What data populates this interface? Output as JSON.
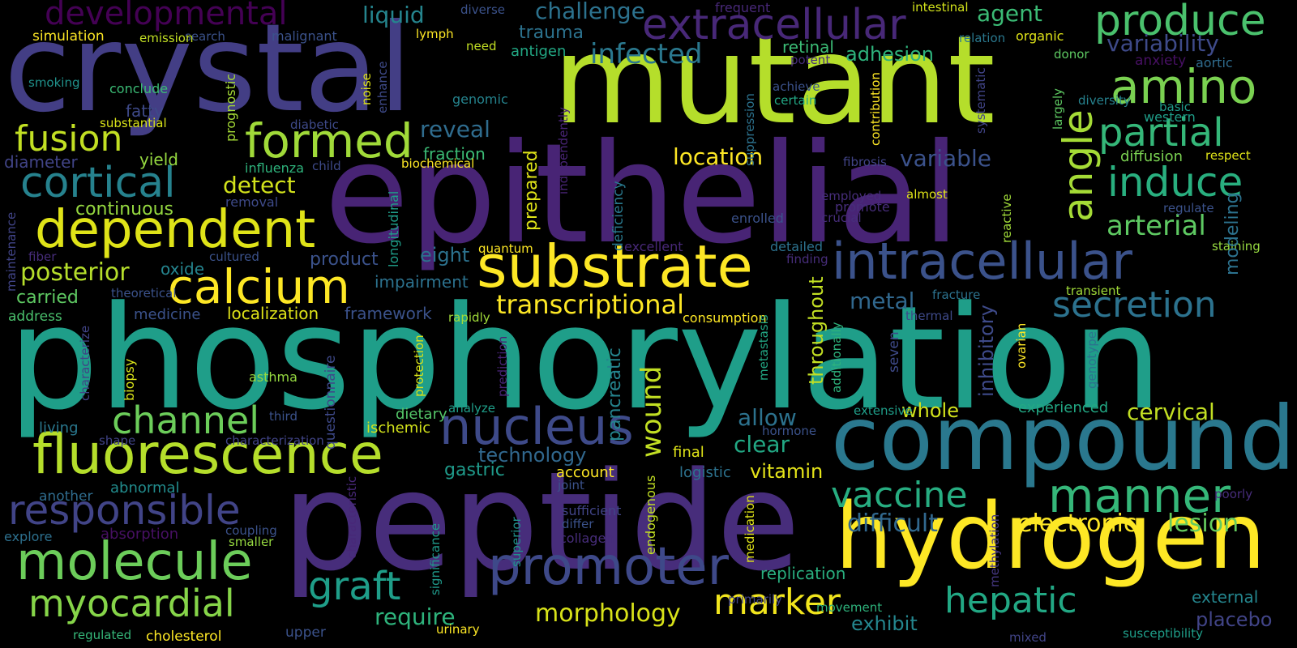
{
  "words": [
    {
      "text": "phosphorylation",
      "color": "#1f9e89"
    },
    {
      "text": "epithelial",
      "color": "#482475"
    },
    {
      "text": "mutant",
      "color": "#b5de2b"
    },
    {
      "text": "crystal",
      "color": "#433e85"
    },
    {
      "text": "peptide",
      "color": "#472d7b"
    },
    {
      "text": "compound",
      "color": "#2a788e"
    },
    {
      "text": "hydrogen",
      "color": "#fde725"
    },
    {
      "text": "substrate",
      "color": "#fde725"
    },
    {
      "text": "intracellular",
      "color": "#3b528b"
    },
    {
      "text": "extracellular",
      "color": "#482878"
    },
    {
      "text": "fluorescence",
      "color": "#b5de2b"
    },
    {
      "text": "dependent",
      "color": "#dfe318"
    },
    {
      "text": "nucleus",
      "color": "#3e4a89"
    },
    {
      "text": "promoter",
      "color": "#3e4989"
    },
    {
      "text": "molecule",
      "color": "#6ccd5a"
    },
    {
      "text": "responsible",
      "color": "#414487"
    },
    {
      "text": "calcium",
      "color": "#fde725"
    },
    {
      "text": "manner",
      "color": "#35b779"
    },
    {
      "text": "produce",
      "color": "#4ac16d"
    },
    {
      "text": "amino",
      "color": "#7ad151"
    },
    {
      "text": "developmental",
      "color": "#440154"
    },
    {
      "text": "formed",
      "color": "#a0da39"
    },
    {
      "text": "cortical",
      "color": "#26828e"
    },
    {
      "text": "myocardial",
      "color": "#86d549"
    },
    {
      "text": "channel",
      "color": "#6ccd5a"
    },
    {
      "text": "fusion",
      "color": "#c2df23"
    },
    {
      "text": "secretion",
      "color": "#2c728e"
    },
    {
      "text": "partial",
      "color": "#35b779"
    },
    {
      "text": "induce",
      "color": "#29af7f"
    },
    {
      "text": "angle",
      "color": "#a5db36"
    },
    {
      "text": "hepatic",
      "color": "#22a884"
    },
    {
      "text": "vaccine",
      "color": "#27ad81"
    },
    {
      "text": "graft",
      "color": "#1f9e89"
    },
    {
      "text": "marker",
      "color": "#f1e51d"
    },
    {
      "text": "wound",
      "color": "#c2df23"
    },
    {
      "text": "transcriptional",
      "color": "#fde725"
    },
    {
      "text": "arterial",
      "color": "#5ec962"
    },
    {
      "text": "morphology",
      "color": "#d8e219"
    },
    {
      "text": "electronic",
      "color": "#fde725"
    },
    {
      "text": "lesion",
      "color": "#65cb5e"
    },
    {
      "text": "posterior",
      "color": "#b5de2b"
    },
    {
      "text": "require",
      "color": "#2eb37c"
    },
    {
      "text": "difficult",
      "color": "#31688e"
    },
    {
      "text": "variability",
      "color": "#3e4a89"
    },
    {
      "text": "infected",
      "color": "#2a788e"
    },
    {
      "text": "challenge",
      "color": "#2c728e"
    },
    {
      "text": "liquid",
      "color": "#25858e"
    },
    {
      "text": "agent",
      "color": "#3bbb75"
    },
    {
      "text": "reveal",
      "color": "#2f6c8e"
    },
    {
      "text": "location",
      "color": "#fde725"
    },
    {
      "text": "variable",
      "color": "#3b528b"
    },
    {
      "text": "metal",
      "color": "#31688e"
    },
    {
      "text": "adhesion",
      "color": "#2eb37c"
    },
    {
      "text": "detect",
      "color": "#d2e21b"
    },
    {
      "text": "modeling",
      "color": "#2c728e"
    },
    {
      "text": "allow",
      "color": "#2c728e"
    },
    {
      "text": "clear",
      "color": "#22a884"
    },
    {
      "text": "vitamin",
      "color": "#e5e419"
    },
    {
      "text": "whole",
      "color": "#d2e21b"
    },
    {
      "text": "cervical",
      "color": "#c2df23"
    },
    {
      "text": "technology",
      "color": "#31688e"
    },
    {
      "text": "product",
      "color": "#3b528b"
    },
    {
      "text": "eight",
      "color": "#2c728e"
    },
    {
      "text": "continuous",
      "color": "#95d840"
    },
    {
      "text": "gastric",
      "color": "#1f9a8a"
    },
    {
      "text": "inhibitory",
      "color": "#3e4a89"
    },
    {
      "text": "throughout",
      "color": "#c2df23"
    },
    {
      "text": "prepared",
      "color": "#dfe318"
    },
    {
      "text": "pancreatic",
      "color": "#25848e"
    },
    {
      "text": "trauma",
      "color": "#2c728e"
    },
    {
      "text": "exhibit",
      "color": "#24868e"
    },
    {
      "text": "external",
      "color": "#24868e"
    },
    {
      "text": "placebo",
      "color": "#414487"
    },
    {
      "text": "replication",
      "color": "#29af7f"
    },
    {
      "text": "fraction",
      "color": "#3bbb75"
    },
    {
      "text": "carried",
      "color": "#5ec962"
    },
    {
      "text": "localization",
      "color": "#dfe318"
    },
    {
      "text": "framework",
      "color": "#3b528b"
    },
    {
      "text": "impairment",
      "color": "#2c728e"
    },
    {
      "text": "oxide",
      "color": "#25848e"
    },
    {
      "text": "retinal",
      "color": "#3bbb75"
    },
    {
      "text": "antigen",
      "color": "#22a884"
    },
    {
      "text": "experienced",
      "color": "#22a884"
    },
    {
      "text": "account",
      "color": "#fde725"
    },
    {
      "text": "final",
      "color": "#dfe318"
    },
    {
      "text": "dietary",
      "color": "#54c568"
    },
    {
      "text": "abnormal",
      "color": "#228c8d"
    },
    {
      "text": "fatty",
      "color": "#3e4a89"
    },
    {
      "text": "diameter",
      "color": "#414487"
    },
    {
      "text": "yield",
      "color": "#95d840"
    },
    {
      "text": "simulation",
      "color": "#fde725"
    },
    {
      "text": "cholesterol",
      "color": "#fde725"
    },
    {
      "text": "another",
      "color": "#2f6c8e"
    },
    {
      "text": "living",
      "color": "#2a788e"
    },
    {
      "text": "address",
      "color": "#4ac16d"
    },
    {
      "text": "medicine",
      "color": "#3b528b"
    },
    {
      "text": "absorption",
      "color": "#471063"
    },
    {
      "text": "explore",
      "color": "#2d708e"
    },
    {
      "text": "deficiency",
      "color": "#29798e"
    },
    {
      "text": "longitudinal",
      "color": "#1f9e89"
    },
    {
      "text": "independently",
      "color": "#482475"
    },
    {
      "text": "enhance",
      "color": "#3e4a89"
    },
    {
      "text": "prognostic",
      "color": "#a5db36"
    },
    {
      "text": "noise",
      "color": "#dfe318"
    },
    {
      "text": "questionnaire",
      "color": "#3e4989"
    },
    {
      "text": "significance",
      "color": "#1f9a8a"
    },
    {
      "text": "superior",
      "color": "#20928c"
    },
    {
      "text": "endogenous",
      "color": "#c2df23"
    },
    {
      "text": "medication",
      "color": "#dfe318"
    },
    {
      "text": "additionally",
      "color": "#2eb37c"
    },
    {
      "text": "metastasis",
      "color": "#22a884"
    },
    {
      "text": "seven",
      "color": "#3e4a89"
    },
    {
      "text": "methylation",
      "color": "#453781"
    },
    {
      "text": "ovarian",
      "color": "#fde725"
    },
    {
      "text": "genotype",
      "color": "#2c728e"
    },
    {
      "text": "reactive",
      "color": "#a0da39"
    },
    {
      "text": "contribution",
      "color": "#fde725"
    },
    {
      "text": "systematic",
      "color": "#414487"
    },
    {
      "text": "suppression",
      "color": "#2c728e"
    },
    {
      "text": "largely",
      "color": "#5ec962"
    },
    {
      "text": "maintenance",
      "color": "#414487"
    },
    {
      "text": "characterize",
      "color": "#414487"
    },
    {
      "text": "biopsy",
      "color": "#d8e219"
    },
    {
      "text": "protection",
      "color": "#d8e219"
    },
    {
      "text": "prediction",
      "color": "#482475"
    },
    {
      "text": "characteristic",
      "color": "#482878"
    },
    {
      "text": "frequent",
      "color": "#482878"
    },
    {
      "text": "intestinal",
      "color": "#d2e21b"
    },
    {
      "text": "relation",
      "color": "#2a788e"
    },
    {
      "text": "organic",
      "color": "#dfe318"
    },
    {
      "text": "donor",
      "color": "#5ec962"
    },
    {
      "text": "anxiety",
      "color": "#471063"
    },
    {
      "text": "aortic",
      "color": "#2f6c8e"
    },
    {
      "text": "diversity",
      "color": "#26828e"
    },
    {
      "text": "basic",
      "color": "#1f9a8a"
    },
    {
      "text": "western",
      "color": "#1f9e89"
    },
    {
      "text": "diffusion",
      "color": "#7ad151"
    },
    {
      "text": "respect",
      "color": "#dfe318"
    },
    {
      "text": "regulate",
      "color": "#3b528b"
    },
    {
      "text": "staining",
      "color": "#95d840"
    },
    {
      "text": "transient",
      "color": "#a0da39"
    },
    {
      "text": "thermal",
      "color": "#3e4a89"
    },
    {
      "text": "fracture",
      "color": "#2c728e"
    },
    {
      "text": "finding",
      "color": "#472d7b"
    },
    {
      "text": "detailed",
      "color": "#2c728e"
    },
    {
      "text": "excellent",
      "color": "#482878"
    },
    {
      "text": "consumption",
      "color": "#fde725"
    },
    {
      "text": "enrolled",
      "color": "#3b528b"
    },
    {
      "text": "crucial",
      "color": "#472d7b"
    },
    {
      "text": "employed",
      "color": "#472d7b"
    },
    {
      "text": "promote",
      "color": "#472d7b"
    },
    {
      "text": "almost",
      "color": "#dfe318"
    },
    {
      "text": "achieve",
      "color": "#3b528b"
    },
    {
      "text": "certain",
      "color": "#22a884"
    },
    {
      "text": "potent",
      "color": "#472d7b"
    },
    {
      "text": "fibrosis",
      "color": "#414487"
    },
    {
      "text": "child",
      "color": "#3e4a89"
    },
    {
      "text": "biochemical",
      "color": "#fde725"
    },
    {
      "text": "influenza",
      "color": "#2eb37c"
    },
    {
      "text": "removal",
      "color": "#3e4a89"
    },
    {
      "text": "diabetic",
      "color": "#3e4a89"
    },
    {
      "text": "substantial",
      "color": "#d8e219"
    },
    {
      "text": "conclude",
      "color": "#3bbb75"
    },
    {
      "text": "smoking",
      "color": "#20928c"
    },
    {
      "text": "genomic",
      "color": "#25848e"
    },
    {
      "text": "need",
      "color": "#c2df23"
    },
    {
      "text": "lymph",
      "color": "#fde725"
    },
    {
      "text": "diverse",
      "color": "#3b528b"
    },
    {
      "text": "search",
      "color": "#3b528b"
    },
    {
      "text": "malignant",
      "color": "#3b528b"
    },
    {
      "text": "emission",
      "color": "#c2df23"
    },
    {
      "text": "fiber",
      "color": "#472d7b"
    },
    {
      "text": "cultured",
      "color": "#3b528b"
    },
    {
      "text": "theoretical",
      "color": "#3b528b"
    },
    {
      "text": "quantum",
      "color": "#fde725"
    },
    {
      "text": "rapidly",
      "color": "#a0da39"
    },
    {
      "text": "asthma",
      "color": "#95d840"
    },
    {
      "text": "third",
      "color": "#3b528b"
    },
    {
      "text": "analyze",
      "color": "#1f9e89"
    },
    {
      "text": "ischemic",
      "color": "#d2e21b"
    },
    {
      "text": "shape",
      "color": "#414487"
    },
    {
      "text": "characterization",
      "color": "#414487"
    },
    {
      "text": "hormone",
      "color": "#3b528b"
    },
    {
      "text": "extensive",
      "color": "#1f9e89"
    },
    {
      "text": "logistic",
      "color": "#2c728e"
    },
    {
      "text": "joint",
      "color": "#3b528b"
    },
    {
      "text": "sufficient",
      "color": "#414487"
    },
    {
      "text": "differ",
      "color": "#3b528b"
    },
    {
      "text": "collagen",
      "color": "#472d7b"
    },
    {
      "text": "coupling",
      "color": "#3b528b"
    },
    {
      "text": "smaller",
      "color": "#95d840"
    },
    {
      "text": "urinary",
      "color": "#fde725"
    },
    {
      "text": "upper",
      "color": "#3b528b"
    },
    {
      "text": "regulated",
      "color": "#35b779"
    },
    {
      "text": "primarily",
      "color": "#414487"
    },
    {
      "text": "movement",
      "color": "#2eb37c"
    },
    {
      "text": "mixed",
      "color": "#414487"
    },
    {
      "text": "susceptibility",
      "color": "#1f9e89"
    },
    {
      "text": "poorly",
      "color": "#472d7b"
    },
    {
      "text": "making",
      "color": "#dfe318"
    }
  ]
}
